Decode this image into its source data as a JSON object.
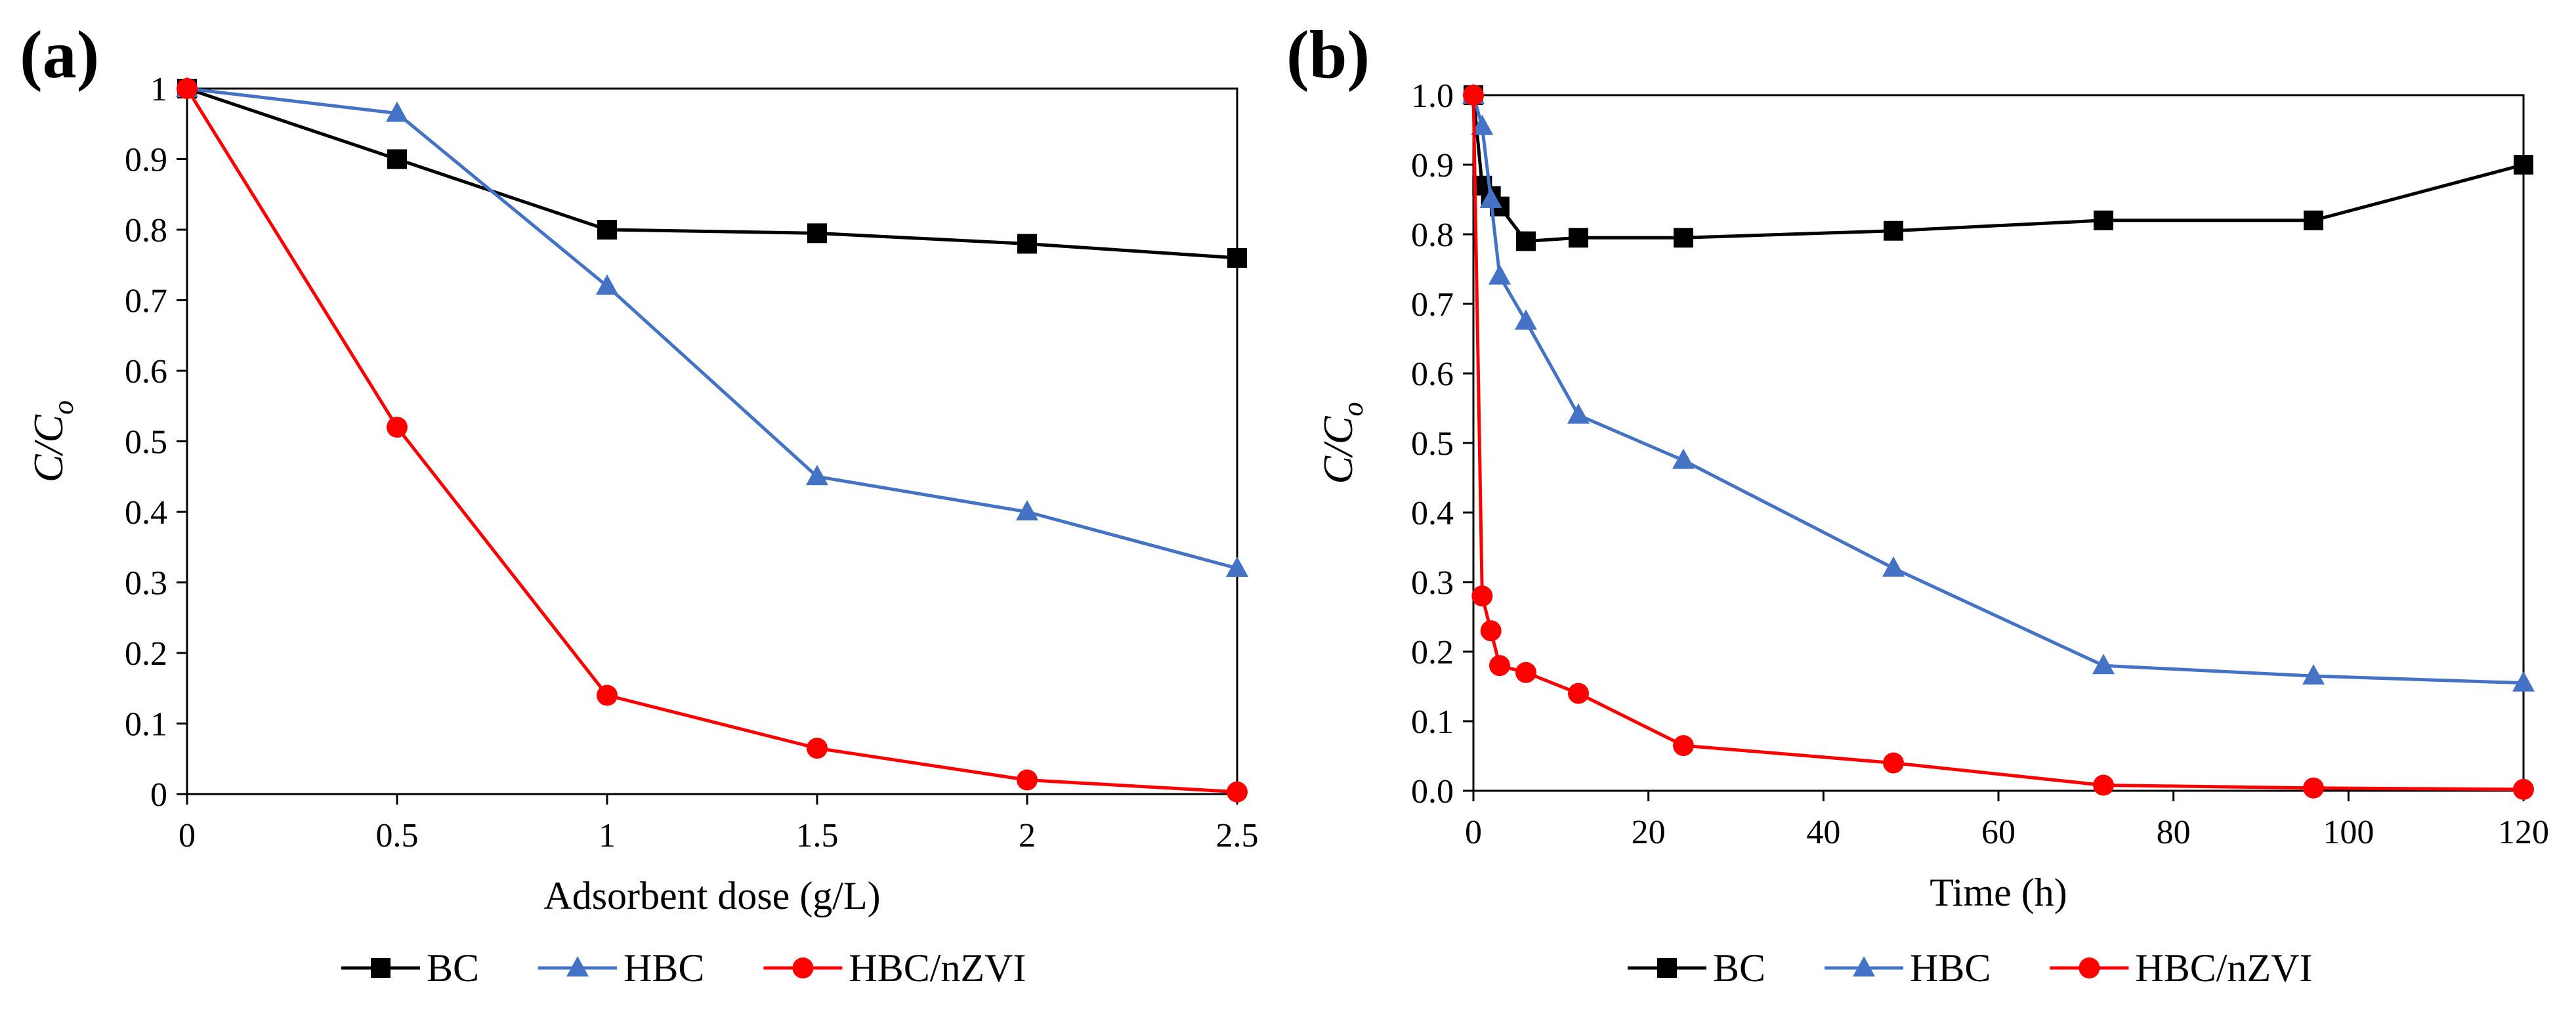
{
  "chart_data": [
    {
      "type": "line",
      "panel_label": "(a)",
      "xlabel": "Adsorbent dose (g/L)",
      "ylabel_main": "C/C",
      "ylabel_sub": "o",
      "xlim": [
        0,
        2.5
      ],
      "ylim": [
        0,
        1
      ],
      "xticks": [
        0,
        0.5,
        1,
        1.5,
        2,
        2.5
      ],
      "xtick_labels": [
        "0",
        "0.5",
        "1",
        "1.5",
        "2",
        "2.5"
      ],
      "yticks": [
        0,
        0.1,
        0.2,
        0.3,
        0.4,
        0.5,
        0.6,
        0.7,
        0.8,
        0.9,
        1
      ],
      "ytick_labels": [
        "0",
        "0.1",
        "0.2",
        "0.3",
        "0.4",
        "0.5",
        "0.6",
        "0.7",
        "0.8",
        "0.9",
        "1"
      ],
      "x": [
        0,
        0.5,
        1,
        1.5,
        2,
        2.5
      ],
      "series": [
        {
          "name": "BC",
          "color": "#000000",
          "marker": "square",
          "values": [
            1.0,
            0.9,
            0.8,
            0.795,
            0.78,
            0.76
          ]
        },
        {
          "name": "HBC",
          "color": "#4472C4",
          "marker": "triangle",
          "values": [
            1.0,
            0.965,
            0.72,
            0.45,
            0.4,
            0.32
          ]
        },
        {
          "name": "HBC/nZVI",
          "color": "#FF0000",
          "marker": "circle",
          "values": [
            1.0,
            0.52,
            0.14,
            0.065,
            0.02,
            0.003
          ]
        }
      ],
      "legend_position": "bottom"
    },
    {
      "type": "line",
      "panel_label": "(b)",
      "xlabel": "Time (h)",
      "ylabel_main": "C/C",
      "ylabel_sub": "o",
      "xlim": [
        0,
        120
      ],
      "ylim": [
        0,
        1
      ],
      "xticks": [
        0,
        20,
        40,
        60,
        80,
        100,
        120
      ],
      "xtick_labels": [
        "0",
        "20",
        "40",
        "60",
        "80",
        "100",
        "120"
      ],
      "yticks": [
        0,
        0.1,
        0.2,
        0.3,
        0.4,
        0.5,
        0.6,
        0.7,
        0.8,
        0.9,
        1
      ],
      "ytick_labels": [
        "0.0",
        "0.1",
        "0.2",
        "0.3",
        "0.4",
        "0.5",
        "0.6",
        "0.7",
        "0.8",
        "0.9",
        "1.0"
      ],
      "x": [
        0,
        1,
        2,
        3,
        6,
        12,
        24,
        48,
        72,
        96,
        120
      ],
      "series": [
        {
          "name": "BC",
          "color": "#000000",
          "marker": "square",
          "values": [
            1.0,
            0.87,
            0.855,
            0.84,
            0.79,
            0.795,
            0.795,
            0.805,
            0.82,
            0.82,
            0.9
          ]
        },
        {
          "name": "HBC",
          "color": "#4472C4",
          "marker": "triangle",
          "values": [
            1.0,
            0.955,
            0.85,
            0.74,
            0.675,
            0.54,
            0.475,
            0.32,
            0.18,
            0.165,
            0.155
          ]
        },
        {
          "name": "HBC/nZVI",
          "color": "#FF0000",
          "marker": "circle",
          "values": [
            1.0,
            0.28,
            0.23,
            0.18,
            0.17,
            0.14,
            0.065,
            0.04,
            0.008,
            0.004,
            0.002
          ]
        }
      ],
      "legend_position": "bottom"
    }
  ]
}
